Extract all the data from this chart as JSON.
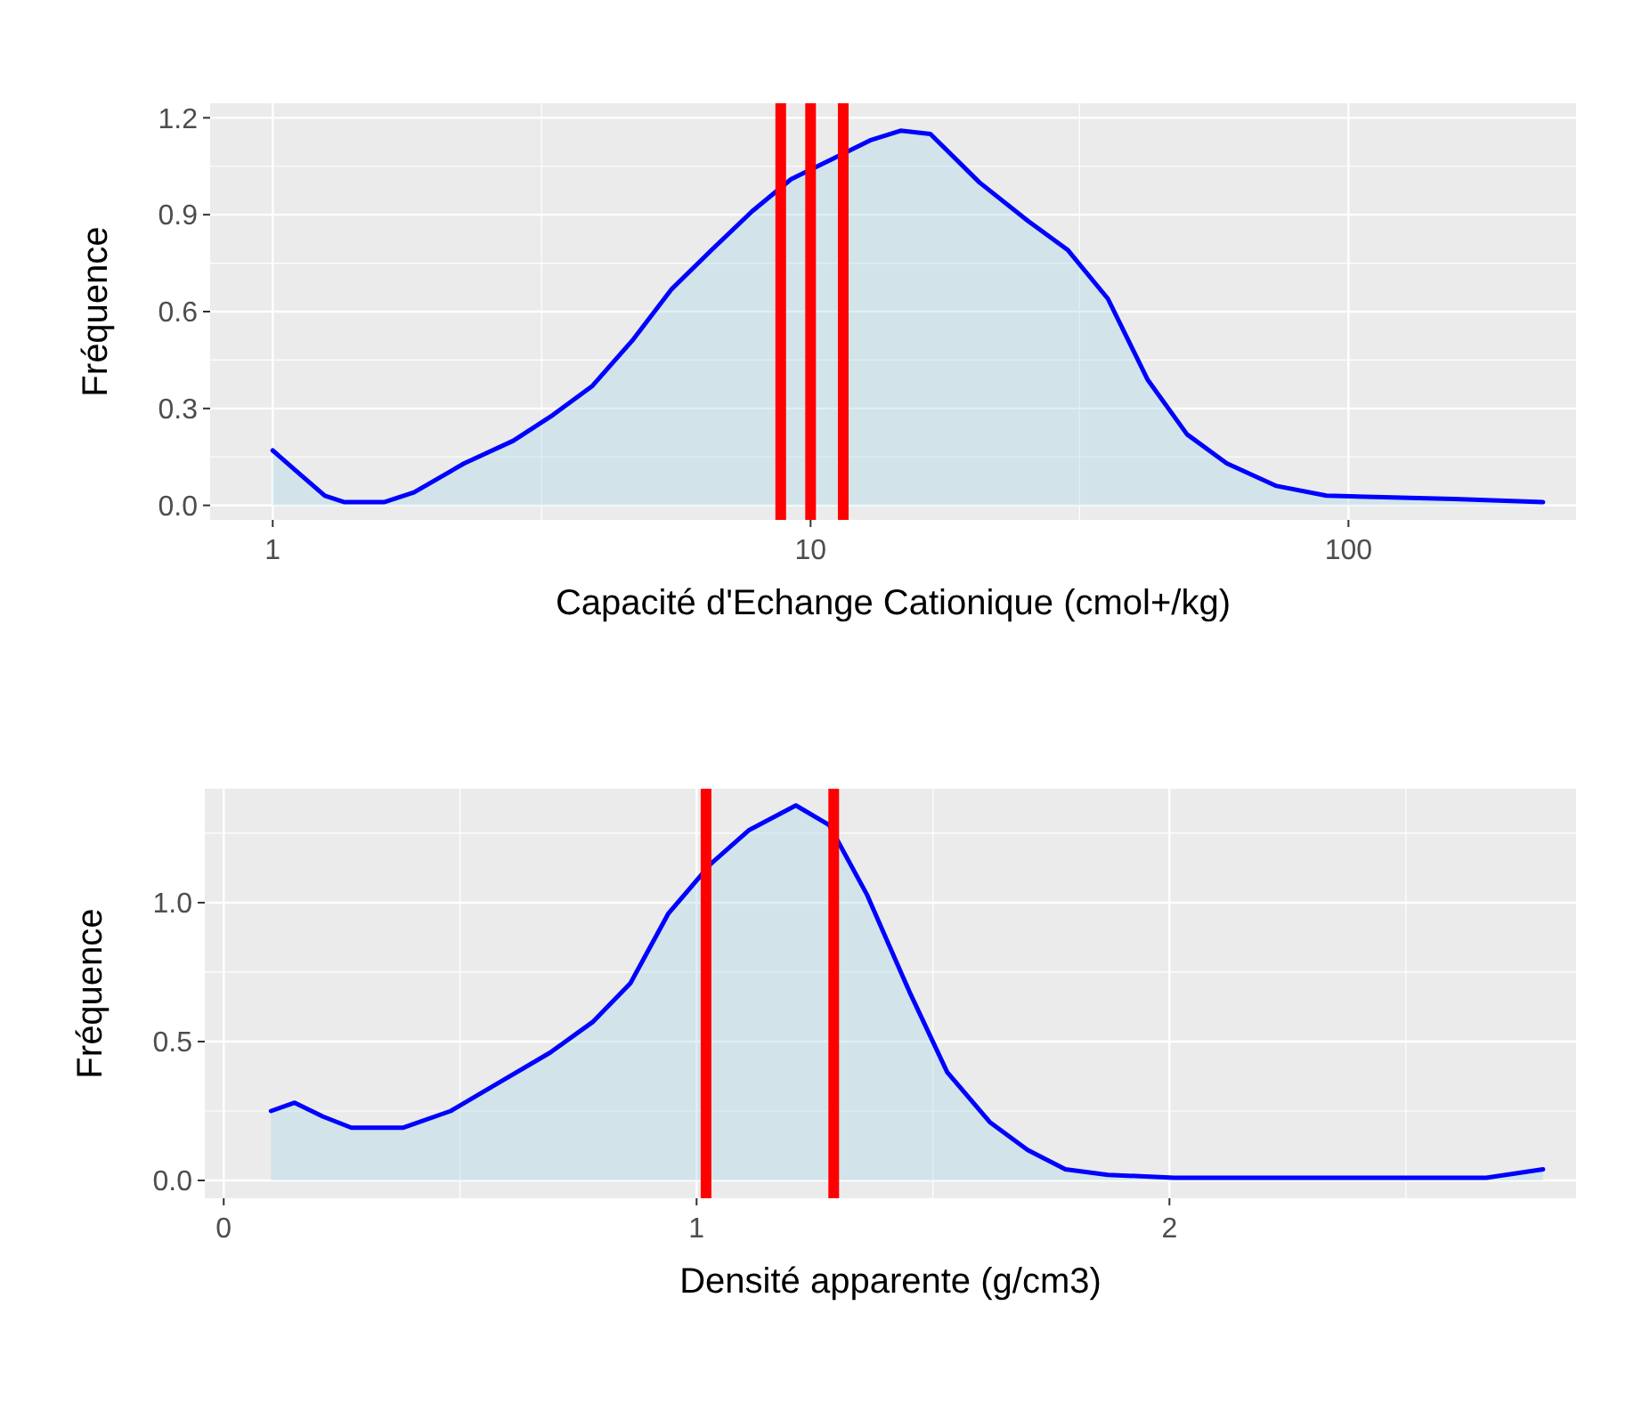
{
  "chart_data": [
    {
      "type": "area",
      "xlabel": "Capacité d'Echange Cationique (cmol+/kg)",
      "ylabel": "Fréquence",
      "log": "x",
      "grid": true,
      "xlim": [
        0.765,
        265
      ],
      "xticks": [
        1,
        10,
        100
      ],
      "ylim": [
        -0.045,
        1.245
      ],
      "yticks": [
        {
          "value": 0,
          "label": "0.0"
        },
        0.3,
        0.6,
        0.9,
        {
          "value": 1.2,
          "label": "1.2"
        }
      ],
      "series": [
        {
          "color": "#0000ff",
          "x": [
            1,
            1.1,
            1.25,
            1.36,
            1.61,
            1.83,
            2.27,
            2.8,
            3.32,
            3.93,
            4.66,
            5.52,
            6.54,
            7.78,
            9.2,
            10.9,
            12.9,
            14.7,
            16.7,
            20.6,
            25.4,
            30.1,
            35.7,
            42.3,
            50.1,
            59.4,
            73.5,
            91,
            157,
            230
          ],
          "values": [
            0.17,
            0.11,
            0.03,
            0.01,
            0.01,
            0.04,
            0.13,
            0.2,
            0.28,
            0.37,
            0.51,
            0.67,
            0.79,
            0.91,
            1.01,
            1.07,
            1.13,
            1.16,
            1.15,
            1.0,
            0.88,
            0.79,
            0.64,
            0.39,
            0.22,
            0.13,
            0.06,
            0.03,
            0.02,
            0.01
          ]
        }
      ],
      "ref_lines": [
        {
          "axis": "x",
          "value": 8.8,
          "color": "#ff0000"
        },
        {
          "axis": "x",
          "value": 10,
          "color": "#ff0000"
        },
        {
          "axis": "x",
          "value": 11.5,
          "color": "#ff0000"
        }
      ]
    },
    {
      "type": "area",
      "xlabel": "Densité apparente (g/cm3)",
      "ylabel": "Fréquence",
      "grid": true,
      "xlim": [
        -0.04,
        2.86
      ],
      "xticks": [
        0,
        1,
        2
      ],
      "ylim": [
        -0.064,
        1.41
      ],
      "yticks": [
        {
          "value": 0,
          "label": "0.0"
        },
        0.5,
        {
          "value": 1,
          "label": "1.0"
        }
      ],
      "series": [
        {
          "color": "#0000ff",
          "x": [
            0.1,
            0.15,
            0.21,
            0.27,
            0.38,
            0.48,
            0.59,
            0.69,
            0.78,
            0.86,
            0.94,
            1.03,
            1.11,
            1.21,
            1.28,
            1.36,
            1.45,
            1.53,
            1.62,
            1.7,
            1.78,
            1.87,
            2.01,
            2.33,
            2.67,
            2.79
          ],
          "values": [
            0.25,
            0.28,
            0.23,
            0.19,
            0.19,
            0.25,
            0.36,
            0.46,
            0.57,
            0.71,
            0.96,
            1.14,
            1.26,
            1.35,
            1.28,
            1.03,
            0.68,
            0.39,
            0.21,
            0.11,
            0.04,
            0.02,
            0.01,
            0.01,
            0.01,
            0.04
          ]
        }
      ],
      "ref_lines": [
        {
          "axis": "x",
          "value": 1.02,
          "color": "#ff0000"
        },
        {
          "axis": "x",
          "value": 1.29,
          "color": "#ff0000"
        }
      ]
    }
  ]
}
